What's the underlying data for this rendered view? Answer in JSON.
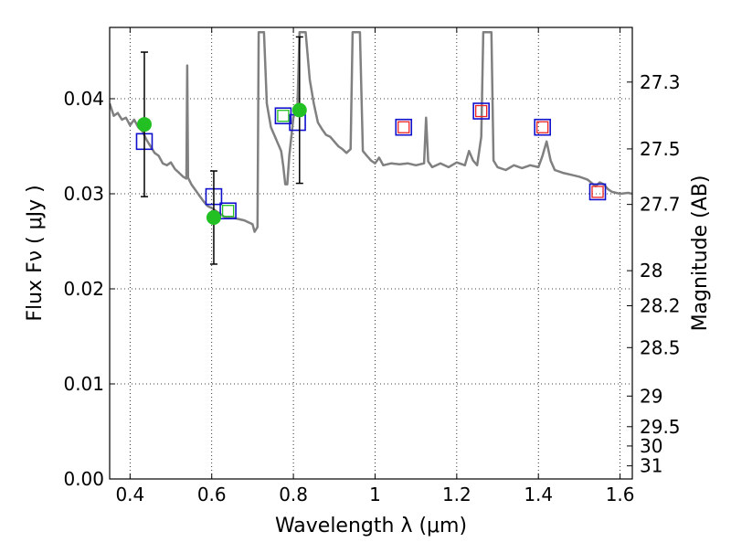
{
  "chart_data": {
    "type": "scatter",
    "xlabel": "Wavelength  λ (μm)",
    "ylabel": "Flux  Fν  ( μJy )",
    "ylabel_right": "Magnitude (AB)",
    "xlim": [
      0.35,
      1.63
    ],
    "ylim": [
      0.0,
      0.0475
    ],
    "grid": true,
    "x_ticks": [
      0.4,
      0.6,
      0.8,
      1.0,
      1.2,
      1.4,
      1.6
    ],
    "x_tick_labels": [
      "0.4",
      "0.6",
      "0.8",
      "1",
      "1.2",
      "1.4",
      "1.6"
    ],
    "y_ticks": [
      0.0,
      0.01,
      0.02,
      0.03,
      0.04
    ],
    "y_tick_labels": [
      "0.00",
      "0.01",
      "0.02",
      "0.03",
      "0.04"
    ],
    "right_ticks": [
      {
        "label": "27.3",
        "flux": 0.04175
      },
      {
        "label": "27.5",
        "flux": 0.03472
      },
      {
        "label": "27.7",
        "flux": 0.02888
      },
      {
        "label": "28",
        "flux": 0.02191
      },
      {
        "label": "28.2",
        "flux": 0.01822
      },
      {
        "label": "28.5",
        "flux": 0.01382
      },
      {
        "label": "29",
        "flux": 0.00872
      },
      {
        "label": "29.5",
        "flux": 0.0055
      },
      {
        "label": "30",
        "flux": 0.00347
      },
      {
        "label": "31",
        "flux": 0.00138
      }
    ],
    "series": [
      {
        "kind": "spectrum",
        "color": "#808080",
        "points": [
          [
            0.35,
            0.0395
          ],
          [
            0.36,
            0.0382
          ],
          [
            0.37,
            0.0385
          ],
          [
            0.38,
            0.0378
          ],
          [
            0.39,
            0.038
          ],
          [
            0.4,
            0.0372
          ],
          [
            0.41,
            0.0378
          ],
          [
            0.42,
            0.037
          ],
          [
            0.43,
            0.0366
          ],
          [
            0.44,
            0.0357
          ],
          [
            0.45,
            0.035
          ],
          [
            0.46,
            0.0343
          ],
          [
            0.47,
            0.034
          ],
          [
            0.48,
            0.0332
          ],
          [
            0.49,
            0.033
          ],
          [
            0.5,
            0.0333
          ],
          [
            0.51,
            0.0326
          ],
          [
            0.52,
            0.0322
          ],
          [
            0.53,
            0.0318
          ],
          [
            0.538,
            0.0316
          ],
          [
            0.54,
            0.0435
          ],
          [
            0.542,
            0.0317
          ],
          [
            0.55,
            0.031
          ],
          [
            0.56,
            0.0304
          ],
          [
            0.57,
            0.0298
          ],
          [
            0.58,
            0.0292
          ],
          [
            0.59,
            0.0287
          ],
          [
            0.6,
            0.0285
          ],
          [
            0.61,
            0.0282
          ],
          [
            0.62,
            0.0279
          ],
          [
            0.63,
            0.0276
          ],
          [
            0.64,
            0.0275
          ],
          [
            0.65,
            0.0275
          ],
          [
            0.66,
            0.0274
          ],
          [
            0.67,
            0.0273
          ],
          [
            0.68,
            0.0272
          ],
          [
            0.69,
            0.027
          ],
          [
            0.7,
            0.0268
          ],
          [
            0.705,
            0.026
          ],
          [
            0.712,
            0.0265
          ],
          [
            0.715,
            0.047
          ],
          [
            0.722,
            0.047
          ],
          [
            0.728,
            0.047
          ],
          [
            0.735,
            0.0395
          ],
          [
            0.745,
            0.037
          ],
          [
            0.755,
            0.036
          ],
          [
            0.76,
            0.0355
          ],
          [
            0.77,
            0.0345
          ],
          [
            0.775,
            0.033
          ],
          [
            0.78,
            0.031
          ],
          [
            0.785,
            0.031
          ],
          [
            0.79,
            0.034
          ],
          [
            0.8,
            0.038
          ],
          [
            0.81,
            0.0395
          ],
          [
            0.815,
            0.047
          ],
          [
            0.82,
            0.047
          ],
          [
            0.83,
            0.047
          ],
          [
            0.84,
            0.042
          ],
          [
            0.85,
            0.0395
          ],
          [
            0.86,
            0.0375
          ],
          [
            0.87,
            0.0368
          ],
          [
            0.88,
            0.0362
          ],
          [
            0.89,
            0.036
          ],
          [
            0.9,
            0.0355
          ],
          [
            0.91,
            0.035
          ],
          [
            0.92,
            0.0347
          ],
          [
            0.93,
            0.0343
          ],
          [
            0.94,
            0.0347
          ],
          [
            0.945,
            0.047
          ],
          [
            0.952,
            0.047
          ],
          [
            0.958,
            0.047
          ],
          [
            0.963,
            0.047
          ],
          [
            0.97,
            0.0345
          ],
          [
            0.98,
            0.034
          ],
          [
            0.99,
            0.0335
          ],
          [
            1.0,
            0.0332
          ],
          [
            1.01,
            0.0338
          ],
          [
            1.02,
            0.033
          ],
          [
            1.04,
            0.0332
          ],
          [
            1.06,
            0.0331
          ],
          [
            1.08,
            0.0332
          ],
          [
            1.1,
            0.033
          ],
          [
            1.12,
            0.0332
          ],
          [
            1.125,
            0.038
          ],
          [
            1.13,
            0.0334
          ],
          [
            1.14,
            0.0328
          ],
          [
            1.16,
            0.0332
          ],
          [
            1.18,
            0.0328
          ],
          [
            1.2,
            0.0333
          ],
          [
            1.22,
            0.033
          ],
          [
            1.23,
            0.0345
          ],
          [
            1.24,
            0.0335
          ],
          [
            1.25,
            0.033
          ],
          [
            1.26,
            0.036
          ],
          [
            1.265,
            0.047
          ],
          [
            1.275,
            0.047
          ],
          [
            1.285,
            0.047
          ],
          [
            1.29,
            0.0335
          ],
          [
            1.3,
            0.0328
          ],
          [
            1.32,
            0.0325
          ],
          [
            1.34,
            0.033
          ],
          [
            1.36,
            0.0327
          ],
          [
            1.38,
            0.033
          ],
          [
            1.4,
            0.0328
          ],
          [
            1.41,
            0.034
          ],
          [
            1.42,
            0.0355
          ],
          [
            1.43,
            0.0335
          ],
          [
            1.44,
            0.0325
          ],
          [
            1.46,
            0.0322
          ],
          [
            1.48,
            0.032
          ],
          [
            1.5,
            0.0318
          ],
          [
            1.52,
            0.0315
          ],
          [
            1.54,
            0.0308
          ],
          [
            1.55,
            0.0312
          ],
          [
            1.56,
            0.031
          ],
          [
            1.57,
            0.0305
          ],
          [
            1.58,
            0.0302
          ],
          [
            1.6,
            0.03
          ],
          [
            1.62,
            0.0301
          ],
          [
            1.63,
            0.03
          ]
        ]
      },
      {
        "kind": "observed",
        "color": "#22c022",
        "points": [
          {
            "x": 0.435,
            "y": 0.0373,
            "err": 0.0076
          },
          {
            "x": 0.605,
            "y": 0.0275,
            "err": 0.0049
          },
          {
            "x": 0.815,
            "y": 0.0388,
            "err": 0.0077
          }
        ]
      },
      {
        "kind": "model_blue_squares",
        "color": "#1010cc",
        "points": [
          [
            0.435,
            0.0355
          ],
          [
            0.605,
            0.0297
          ],
          [
            0.64,
            0.0282
          ],
          [
            0.775,
            0.0382
          ],
          [
            0.81,
            0.0375
          ],
          [
            1.07,
            0.037
          ],
          [
            1.26,
            0.0387
          ],
          [
            1.41,
            0.037
          ],
          [
            1.545,
            0.0302
          ]
        ]
      },
      {
        "kind": "model_red_squares",
        "color": "#ee2020",
        "points": [
          [
            1.07,
            0.037
          ],
          [
            1.26,
            0.0387
          ],
          [
            1.41,
            0.037
          ],
          [
            1.545,
            0.0302
          ]
        ]
      },
      {
        "kind": "model_green_squares",
        "color": "#22c022",
        "points": [
          [
            0.64,
            0.0282
          ],
          [
            0.775,
            0.0382
          ]
        ]
      }
    ]
  }
}
